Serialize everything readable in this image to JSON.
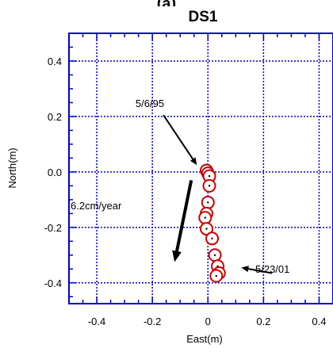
{
  "header": {
    "cut_text": "(a)"
  },
  "chart_data": {
    "type": "scatter",
    "title": "DS1",
    "xlabel": "East(m)",
    "ylabel": "North(m)",
    "xlim": [
      -0.5,
      0.45
    ],
    "ylim": [
      -0.475,
      0.5
    ],
    "x_ticks": [
      "-0.4",
      "-0.2",
      "0",
      "0.2",
      "0.4"
    ],
    "y_ticks": [
      "0.4",
      "0.2",
      "0.0",
      "-0.2",
      "-0.4"
    ],
    "grid": true,
    "colors": {
      "axis": "#0000cc",
      "marker": "#cc0000"
    },
    "series": [
      {
        "x": [
          -0.005,
          0.0,
          0.005,
          0.005,
          0.0,
          -0.005,
          -0.01,
          -0.005,
          0.015,
          0.025,
          0.035,
          0.04,
          0.03
        ],
        "y": [
          0.005,
          -0.005,
          -0.015,
          -0.05,
          -0.11,
          -0.15,
          -0.165,
          -0.205,
          -0.24,
          -0.3,
          -0.34,
          -0.365,
          -0.375
        ]
      }
    ],
    "annotations": {
      "start_label": "5/6/95",
      "end_label": "5/23/01",
      "rate_label": "6.2cm/year"
    },
    "arrows": {
      "start": {
        "from": [
          -0.16,
          0.205
        ],
        "to": [
          -0.04,
          0.025
        ]
      },
      "end": {
        "from": [
          0.23,
          -0.365
        ],
        "to": [
          0.12,
          -0.345
        ]
      },
      "velocity": {
        "from": [
          -0.06,
          -0.03
        ],
        "to": [
          -0.12,
          -0.325
        ]
      }
    }
  }
}
